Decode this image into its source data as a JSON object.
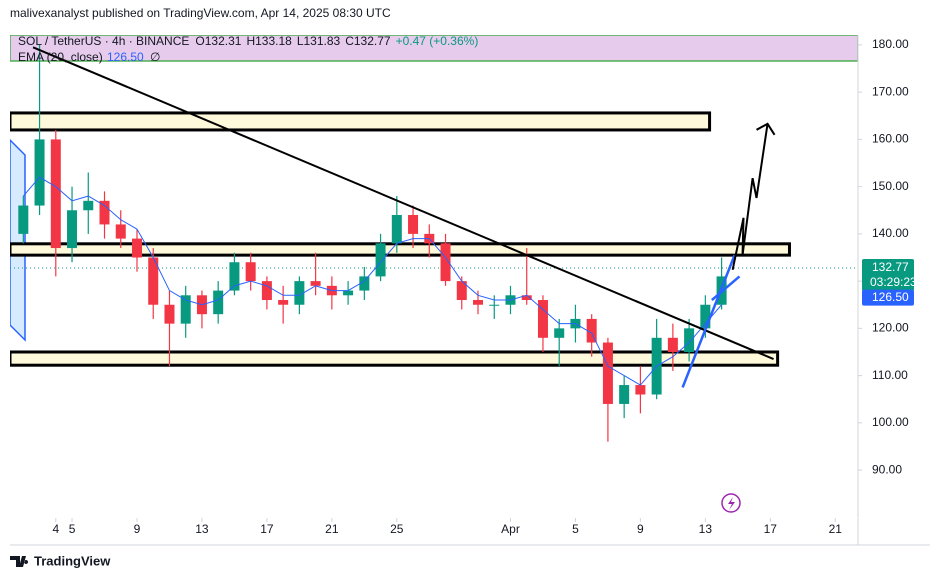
{
  "header": "malivexanalyst published on TradingView.com, Apr 14, 2025 08:30 UTC",
  "footer": "TradingView",
  "chart_data": {
    "type": "candlestick",
    "symbol": "SOL / TetherUS · 4h · BINANCE",
    "ohlc_legend": [
      "O132.31",
      "H133.18",
      "L131.83",
      "C132.77",
      "+0.47 (+0.36%)"
    ],
    "x": [
      2,
      3,
      4,
      5,
      6,
      7,
      8,
      9,
      10,
      11,
      12,
      13,
      14,
      15,
      16,
      17,
      18,
      19,
      20,
      21,
      22,
      23,
      24,
      25,
      26,
      27,
      28,
      29,
      30,
      31,
      32,
      33,
      34,
      35,
      36,
      37,
      38,
      39,
      40,
      41,
      42,
      43,
      44,
      45
    ],
    "open": [
      140,
      146,
      160,
      137,
      145,
      147,
      142,
      139,
      135,
      125,
      121,
      127,
      123,
      128,
      134,
      130,
      126,
      125,
      130,
      129,
      127,
      128,
      131,
      138,
      144,
      140,
      138,
      130,
      126,
      125,
      125,
      127,
      126,
      118,
      120,
      122,
      117,
      104,
      108,
      106,
      118,
      115,
      120,
      125
    ],
    "high": [
      148,
      180,
      162,
      150,
      153,
      149,
      145,
      141,
      137,
      128,
      129,
      128,
      130,
      136,
      136,
      131,
      129,
      131,
      136,
      131,
      130,
      133,
      140,
      148,
      146,
      142,
      140,
      131,
      128,
      127,
      129,
      137,
      127,
      122,
      125,
      123,
      118,
      110,
      112,
      122,
      121,
      122,
      127,
      135
    ],
    "low": [
      138,
      144,
      131,
      134,
      140,
      139,
      137,
      132,
      122,
      112,
      118,
      120,
      121,
      127,
      128,
      124,
      121,
      123,
      127,
      124,
      125,
      126,
      130,
      136,
      137,
      135,
      129,
      124,
      123,
      122,
      123,
      125,
      115,
      112,
      117,
      114,
      96,
      101,
      102,
      105,
      111,
      113,
      118,
      124
    ],
    "close": [
      146,
      160,
      137,
      145,
      147,
      142,
      139,
      135,
      125,
      121,
      127,
      123,
      128,
      134,
      130,
      126,
      125,
      130,
      129,
      127,
      128,
      131,
      138,
      144,
      140,
      138,
      130,
      126,
      125,
      125,
      127,
      126,
      118,
      120,
      122,
      117,
      104,
      108,
      106,
      118,
      115,
      120,
      125,
      131
    ],
    "up_color": "#089981",
    "down_color": "#f23645",
    "ema": {
      "name": "EMA (20, close)",
      "color": "#2962ff",
      "values": [
        148,
        152,
        150,
        147,
        148,
        146,
        143,
        141,
        135,
        128,
        126,
        125,
        126,
        129,
        130,
        129,
        127,
        127,
        129,
        128,
        128,
        130,
        134,
        138,
        139,
        139,
        135,
        130,
        127,
        126,
        126,
        127,
        124,
        121,
        121,
        119,
        112,
        110,
        108,
        112,
        114,
        117,
        121,
        125
      ],
      "last": {
        "value": 126.5,
        "label": "126.50"
      },
      "status": "∅"
    },
    "last_price": {
      "value": 132.77,
      "label": "132.77"
    },
    "countdown": "03:29:23",
    "zones": [
      {
        "low": 176.6,
        "high": 182.1,
        "end": 53.4,
        "color": "#e1bee7"
      },
      {
        "low": 162.0,
        "high": 165.6,
        "end": 44.26,
        "color": "#fff9db"
      },
      {
        "low": 135.5,
        "high": 137.9,
        "end": 49.18,
        "color": "#fff9db"
      },
      {
        "low": 112.2,
        "high": 115.0,
        "end": 48.45,
        "color": "#fff9db"
      }
    ],
    "trendlines": [
      {
        "color": "#000000",
        "points": [
          [
            2.6,
            179.5
          ],
          [
            48.2,
            113.5
          ]
        ]
      },
      {
        "color": "#2962ff",
        "points": [
          [
            42.6,
            107.5
          ],
          [
            45.8,
            135.5
          ]
        ]
      },
      {
        "color": "#2962ff",
        "points": [
          [
            44.4,
            126
          ],
          [
            46.1,
            131
          ]
        ]
      }
    ],
    "projection": {
      "color": "#000000",
      "points": [
        [
          45.68,
          132.4
        ],
        [
          46.35,
          143.4
        ],
        [
          46.29,
          135.5
        ],
        [
          46.91,
          151.8
        ],
        [
          47.15,
          147.6
        ],
        [
          47.83,
          163.3
        ]
      ]
    },
    "xlim": [
      1.18,
      53.4
    ],
    "ylim": [
      75.2,
      182.1
    ],
    "xticks": [
      {
        "value": 4,
        "label": "4"
      },
      5,
      9,
      13,
      17,
      21,
      25,
      {
        "value": 32,
        "label": "Apr"
      },
      {
        "value": 36,
        "label": "5"
      },
      {
        "value": 40,
        "label": "9"
      },
      {
        "value": 44,
        "label": "13"
      },
      {
        "value": 48,
        "label": "17"
      },
      {
        "value": 52,
        "label": "21"
      }
    ],
    "yticks": [
      {
        "value": 90,
        "label": "90.00"
      },
      {
        "value": 100,
        "label": "100.00"
      },
      {
        "value": 110,
        "label": "110.00"
      },
      {
        "value": 120,
        "label": "120.00"
      },
      {
        "value": 130,
        "label": "130.00"
      },
      {
        "value": 140,
        "label": "140.00"
      },
      {
        "value": 150,
        "label": "150.00"
      },
      {
        "value": 160,
        "label": "160.00"
      },
      {
        "value": 170,
        "label": "170.00"
      },
      {
        "value": 180,
        "label": "180.00"
      }
    ]
  }
}
